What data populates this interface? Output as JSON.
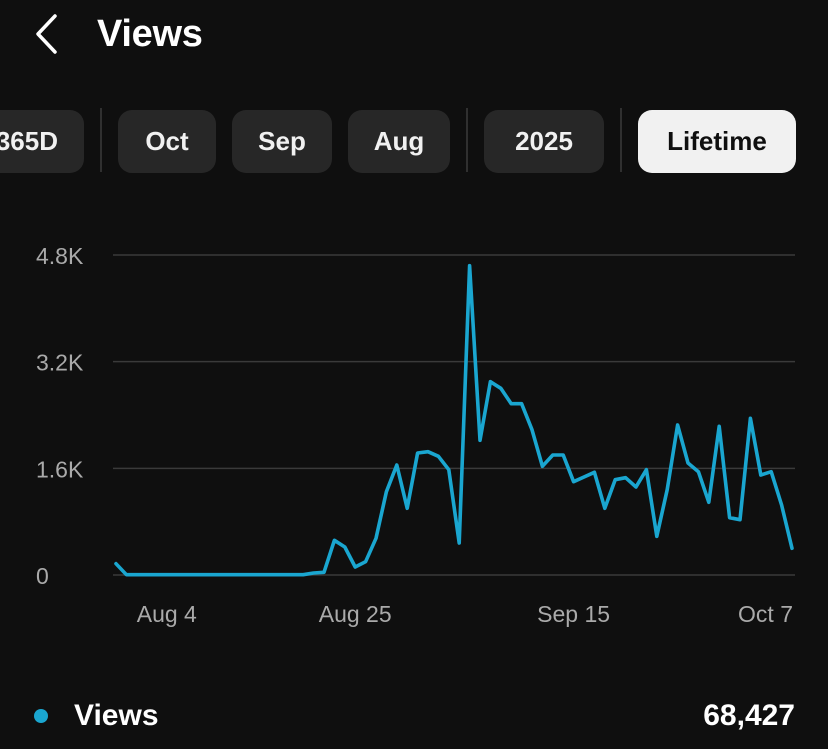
{
  "header": {
    "title": "Views",
    "back_icon": "chevron-left-icon"
  },
  "filters": {
    "chips": [
      {
        "label": "365D",
        "visible_label": "365D",
        "selected": false
      },
      {
        "label": "Oct",
        "selected": false
      },
      {
        "label": "Sep",
        "selected": false
      },
      {
        "label": "Aug",
        "selected": false
      },
      {
        "label": "2025",
        "selected": false
      },
      {
        "label": "Lifetime",
        "selected": true
      }
    ]
  },
  "colors": {
    "background": "#0f0f0f",
    "line": "#1aa6d0",
    "grid": "#3a3a3a",
    "chip_bg": "#272727",
    "chip_selected_bg": "#f1f1f1",
    "axis_text": "#aaaaaa"
  },
  "chart_data": {
    "type": "line",
    "title": "",
    "xlabel": "",
    "ylabel": "",
    "ylim": [
      0,
      4800
    ],
    "y_ticks": [
      {
        "value": 0,
        "label": "0"
      },
      {
        "value": 1600,
        "label": "1.6K"
      },
      {
        "value": 3200,
        "label": "3.2K"
      },
      {
        "value": 4800,
        "label": "4.8K"
      }
    ],
    "x_ticks": [
      {
        "day": 2,
        "label": "Aug 4"
      },
      {
        "day": 23,
        "label": "Aug 25"
      },
      {
        "day": 44,
        "label": "Sep 15"
      },
      {
        "day": 66,
        "label": "Oct 7"
      }
    ],
    "x_start": "Aug 2",
    "grid": true,
    "series": [
      {
        "name": "Views",
        "values": [
          170,
          5,
          5,
          5,
          5,
          5,
          5,
          5,
          5,
          5,
          5,
          5,
          5,
          5,
          5,
          5,
          5,
          5,
          5,
          30,
          40,
          520,
          420,
          120,
          200,
          550,
          1250,
          1650,
          1000,
          1830,
          1850,
          1780,
          1580,
          480,
          4640,
          2020,
          2900,
          2800,
          2570,
          2570,
          2180,
          1630,
          1800,
          1800,
          1400,
          1470,
          1540,
          1000,
          1430,
          1460,
          1320,
          1580,
          580,
          1280,
          2250,
          1680,
          1550,
          1090,
          2230,
          860,
          830,
          2350,
          1500,
          1550,
          1050,
          400
        ]
      }
    ]
  },
  "legend": {
    "label": "Views",
    "total": "68,427"
  }
}
